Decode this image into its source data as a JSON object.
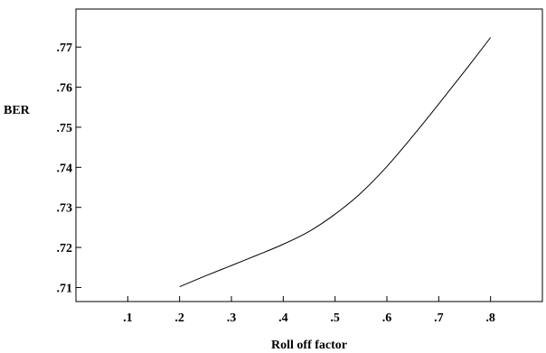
{
  "chart_data": {
    "type": "line",
    "xlabel": "Roll off factor",
    "ylabel": "BER",
    "xlim": [
      0.0,
      0.9
    ],
    "ylim": [
      0.7065,
      0.7795
    ],
    "x_ticks": [
      0.1,
      0.2,
      0.3,
      0.4,
      0.5,
      0.6,
      0.7,
      0.8
    ],
    "x_tick_labels": [
      ".1",
      ".2",
      ".3",
      ".4",
      ".5",
      ".6",
      ".7",
      ".8"
    ],
    "y_ticks": [
      0.71,
      0.72,
      0.73,
      0.74,
      0.75,
      0.76,
      0.77
    ],
    "y_tick_labels": [
      ".71",
      ".72",
      ".73",
      ".74",
      ".75",
      ".76",
      ".77"
    ],
    "grid": false,
    "legend": "none",
    "line_color": "#000000",
    "series": [
      {
        "x": [
          0.2,
          0.25,
          0.3,
          0.35,
          0.4,
          0.45,
          0.5,
          0.55,
          0.6,
          0.65,
          0.7,
          0.75,
          0.8
        ],
        "y": [
          0.7102,
          0.7129,
          0.7155,
          0.7181,
          0.7208,
          0.724,
          0.7283,
          0.7336,
          0.7402,
          0.7478,
          0.7558,
          0.764,
          0.7724
        ]
      }
    ]
  }
}
